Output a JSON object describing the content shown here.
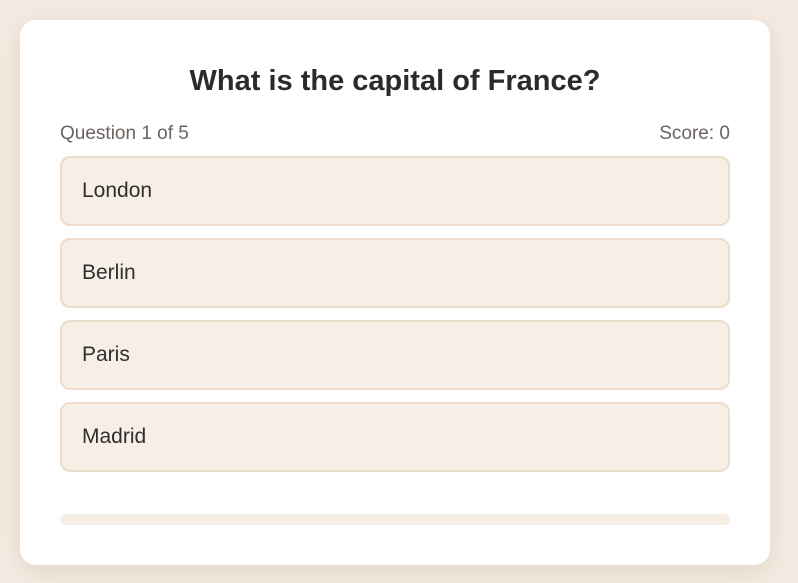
{
  "quiz": {
    "question": "What is the capital of France?",
    "progress_text": "Question 1 of 5",
    "score_text": "Score: 0",
    "answers": [
      "London",
      "Berlin",
      "Paris",
      "Madrid"
    ],
    "progress_fraction": 0
  },
  "colors": {
    "page_background": "#f3eae1",
    "card_background": "#ffffff",
    "answer_background": "#f7efe5",
    "answer_border": "#ecdccb"
  }
}
